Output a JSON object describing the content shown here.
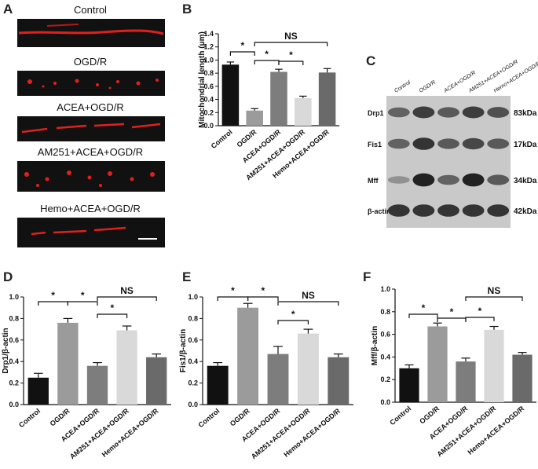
{
  "panel_labels": {
    "a": "A",
    "b": "B",
    "c": "C",
    "d": "D",
    "e": "E",
    "f": "F"
  },
  "panelA": {
    "titles": [
      "Control",
      "OGD/R",
      "ACEA+OGD/R",
      "AM251+ACEA+OGD/R",
      "Hemo+ACEA+OGD/R"
    ]
  },
  "panelC": {
    "lanes": [
      "Control",
      "OGD/R",
      "ACEA+OGD/R",
      "AM251+ACEA+OGD/R",
      "Hemo+ACEA+OGD/R"
    ],
    "bands": [
      {
        "label": "Drp1",
        "size": "83kDa",
        "intensity": [
          0.55,
          0.75,
          0.6,
          0.75,
          0.65
        ]
      },
      {
        "label": "Fis1",
        "size": "17kDa",
        "intensity": [
          0.55,
          0.8,
          0.6,
          0.7,
          0.6
        ]
      },
      {
        "label": "Mff",
        "size": "34kDa",
        "intensity": [
          0.3,
          0.9,
          0.55,
          0.9,
          0.6
        ]
      },
      {
        "label": "β-actin",
        "size": "42kDa",
        "intensity": [
          0.8,
          0.8,
          0.8,
          0.8,
          0.8
        ]
      }
    ]
  },
  "colors": {
    "bars": [
      "#111111",
      "#9b9b9b",
      "#7d7d7d",
      "#d9d9d9",
      "#6a6a6a"
    ]
  },
  "chart_data": [
    {
      "id": "B",
      "type": "bar",
      "categories": [
        "Control",
        "OGD/R",
        "ACEA+OGD/R",
        "AM251+ACEA+OGD/R",
        "Hemo+ACEA+OGD/R"
      ],
      "values": [
        0.93,
        0.23,
        0.82,
        0.42,
        0.81
      ],
      "errors": [
        0.04,
        0.03,
        0.04,
        0.03,
        0.06
      ],
      "ylabel": "Mitochondrial length (μm)",
      "ylim": [
        0,
        1.4
      ],
      "yticks": [
        "0.0",
        "0.2",
        "0.4",
        "0.6",
        "0.8",
        "1.0",
        "1.2",
        "1.4"
      ],
      "annotations": [
        {
          "from": 0,
          "to": 1,
          "label": "*"
        },
        {
          "from": 1,
          "to": 2,
          "label": "*"
        },
        {
          "from": 2,
          "to": 3,
          "label": "*"
        },
        {
          "from": 1,
          "to": 4,
          "label": "NS"
        }
      ]
    },
    {
      "id": "D",
      "type": "bar",
      "categories": [
        "Control",
        "OGD/R",
        "ACEA+OGD/R",
        "AM251+ACEA+OGD/R",
        "Hemo+ACEA+OGD/R"
      ],
      "values": [
        0.25,
        0.76,
        0.36,
        0.69,
        0.44
      ],
      "errors": [
        0.04,
        0.04,
        0.03,
        0.04,
        0.03
      ],
      "ylabel": "Drp1/β-actin",
      "ylim": [
        0,
        1.0
      ],
      "yticks": [
        "0.0",
        "0.2",
        "0.4",
        "0.6",
        "0.8",
        "1.0"
      ],
      "annotations": [
        {
          "from": 0,
          "to": 1,
          "label": "*"
        },
        {
          "from": 1,
          "to": 2,
          "label": "*"
        },
        {
          "from": 2,
          "to": 3,
          "label": "*"
        },
        {
          "from": 2,
          "to": 4,
          "label": "NS"
        }
      ]
    },
    {
      "id": "E",
      "type": "bar",
      "categories": [
        "Control",
        "OGD/R",
        "ACEA+OGD/R",
        "AM251+ACEA+OGD/R",
        "Hemo+ACEA+OGD/R"
      ],
      "values": [
        0.36,
        0.9,
        0.47,
        0.66,
        0.44
      ],
      "errors": [
        0.03,
        0.04,
        0.07,
        0.04,
        0.03
      ],
      "ylabel": "Fis1/β-actin",
      "ylim": [
        0,
        1.0
      ],
      "yticks": [
        "0.0",
        "0.2",
        "0.4",
        "0.6",
        "0.8",
        "1.0"
      ],
      "annotations": [
        {
          "from": 0,
          "to": 1,
          "label": "*"
        },
        {
          "from": 1,
          "to": 2,
          "label": "*"
        },
        {
          "from": 2,
          "to": 3,
          "label": "*"
        },
        {
          "from": 2,
          "to": 4,
          "label": "NS"
        }
      ]
    },
    {
      "id": "F",
      "type": "bar",
      "categories": [
        "Control",
        "OGD/R",
        "ACEA+OGD/R",
        "AM251+ACEA+OGD/R",
        "Hemo+ACEA+OGD/R"
      ],
      "values": [
        0.3,
        0.67,
        0.36,
        0.64,
        0.42
      ],
      "errors": [
        0.03,
        0.03,
        0.03,
        0.03,
        0.02
      ],
      "ylabel": "Mff/β-actin",
      "ylim": [
        0,
        1.0
      ],
      "yticks": [
        "0.0",
        "0.2",
        "0.4",
        "0.6",
        "0.8",
        "1.0"
      ],
      "annotations": [
        {
          "from": 0,
          "to": 1,
          "label": "*"
        },
        {
          "from": 1,
          "to": 2,
          "label": "*"
        },
        {
          "from": 2,
          "to": 3,
          "label": "*"
        },
        {
          "from": 2,
          "to": 4,
          "label": "NS"
        }
      ]
    }
  ]
}
